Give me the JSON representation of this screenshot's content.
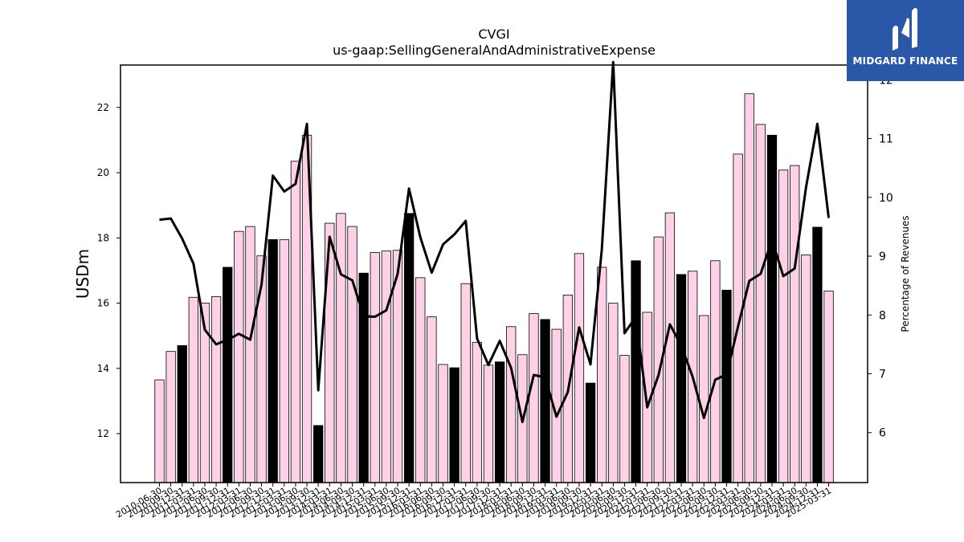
{
  "chart_data": {
    "type": "bar+line",
    "title": "CVGI",
    "subtitle": "us-gaap:SellingGeneralAndAdministrativeExpense",
    "ylabel": "USDm",
    "y2label": "Percentage of Revenues",
    "ylim": [
      10.5,
      23.3
    ],
    "y2lim": [
      5.15,
      12.25
    ],
    "yticks": [
      12,
      14,
      16,
      18,
      20,
      22
    ],
    "y2ticks": [
      6,
      7,
      8,
      9,
      10,
      11,
      12
    ],
    "categories": [
      "2010-06-30",
      "2010-09-30",
      "2010-12-31",
      "2011-03-31",
      "2011-06-30",
      "2011-09-30",
      "2011-12-31",
      "2012-03-31",
      "2012-06-30",
      "2012-09-30",
      "2012-12-31",
      "2013-03-31",
      "2013-06-30",
      "2013-09-30",
      "2013-12-31",
      "2014-03-31",
      "2014-06-30",
      "2014-09-30",
      "2014-12-31",
      "2015-03-31",
      "2015-06-30",
      "2015-09-30",
      "2015-12-31",
      "2016-03-31",
      "2016-06-30",
      "2016-09-30",
      "2016-12-31",
      "2017-03-31",
      "2017-06-30",
      "2017-09-30",
      "2017-12-31",
      "2018-03-31",
      "2018-06-30",
      "2018-09-30",
      "2018-12-31",
      "2019-03-31",
      "2019-06-30",
      "2019-09-30",
      "2019-12-31",
      "2020-03-31",
      "2020-06-30",
      "2020-09-30",
      "2020-12-31",
      "2021-03-31",
      "2021-06-30",
      "2021-09-30",
      "2021-12-31",
      "2022-03-31",
      "2022-06-30",
      "2022-09-30",
      "2022-12-31",
      "2023-03-31",
      "2023-06-30",
      "2023-09-30",
      "2023-12-31",
      "2024-03-31",
      "2024-06-30",
      "2024-09-30",
      "2024-12-31",
      "2025-03-31"
    ],
    "bar_values": [
      13.65,
      14.52,
      14.7,
      16.18,
      16.0,
      16.2,
      17.1,
      18.2,
      18.35,
      17.45,
      17.95,
      17.95,
      20.35,
      21.15,
      12.25,
      18.45,
      18.75,
      18.35,
      16.92,
      17.55,
      17.6,
      17.62,
      18.75,
      16.78,
      15.58,
      14.12,
      14.02,
      16.6,
      14.8,
      14.1,
      14.2,
      15.28,
      14.42,
      15.68,
      15.5,
      15.2,
      16.25,
      17.52,
      13.55,
      17.1,
      16.0,
      14.4,
      17.3,
      15.72,
      18.03,
      18.77,
      16.88,
      16.98,
      15.62,
      17.3,
      16.4,
      20.57,
      22.42,
      21.48,
      21.15,
      20.08,
      20.22,
      17.48,
      18.33,
      16.37
    ],
    "bar_highlight": [
      false,
      false,
      true,
      false,
      false,
      false,
      true,
      false,
      false,
      false,
      true,
      false,
      false,
      false,
      true,
      false,
      false,
      false,
      true,
      false,
      false,
      false,
      true,
      false,
      false,
      false,
      true,
      false,
      false,
      false,
      true,
      false,
      false,
      false,
      true,
      false,
      false,
      false,
      true,
      false,
      false,
      false,
      true,
      false,
      false,
      false,
      true,
      false,
      false,
      false,
      true,
      false,
      false,
      false,
      true,
      false,
      false,
      false,
      true,
      false
    ],
    "line_values": [
      9.62,
      9.64,
      9.3,
      8.87,
      7.75,
      7.5,
      7.58,
      7.68,
      7.58,
      8.52,
      10.37,
      10.1,
      10.23,
      11.25,
      6.72,
      9.33,
      8.69,
      8.59,
      7.98,
      7.97,
      8.08,
      8.7,
      10.15,
      9.32,
      8.72,
      9.2,
      9.37,
      9.6,
      7.6,
      7.15,
      7.56,
      7.1,
      6.18,
      6.98,
      6.94,
      6.27,
      6.69,
      7.79,
      7.16,
      9.12,
      12.3,
      7.69,
      7.97,
      6.43,
      6.98,
      7.84,
      7.48,
      6.95,
      6.25,
      6.9,
      6.99,
      7.8,
      8.58,
      8.7,
      9.28,
      8.66,
      8.79,
      10.17,
      11.25,
      9.65
    ],
    "colors": {
      "bar": "#ffd1e6",
      "bar_highlight": "#000000",
      "bar_edge": "#000000",
      "line": "#000000"
    }
  },
  "logo": {
    "text": "MIDGARD FINANCE",
    "icon": "midgard-logo-icon"
  }
}
